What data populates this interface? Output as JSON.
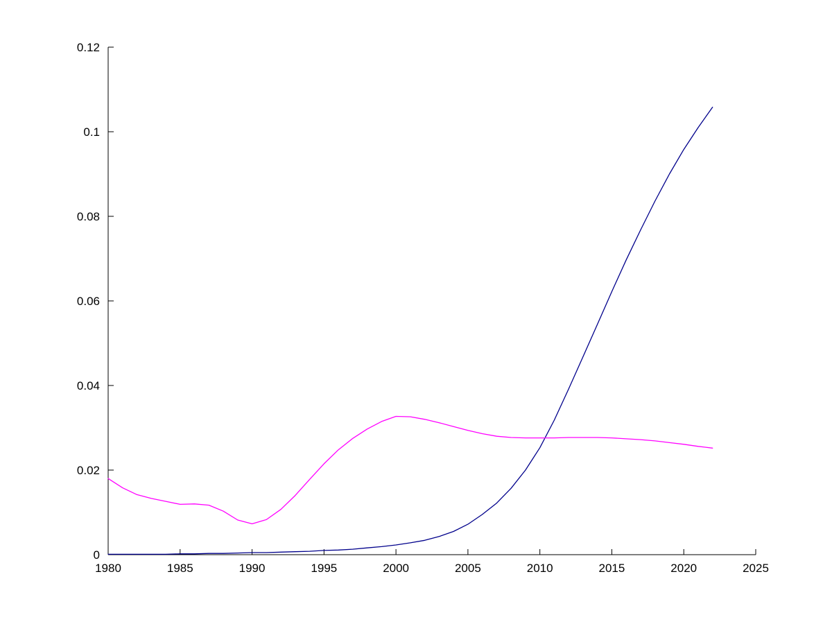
{
  "figure": {
    "background_color": "#ffffff",
    "axis_color": "#000000"
  },
  "chart_data": {
    "type": "line",
    "title": "",
    "xlabel": "",
    "ylabel": "",
    "grid": false,
    "legend": null,
    "xlim": [
      1980,
      2025
    ],
    "ylim": [
      0,
      0.12
    ],
    "xticks": [
      1980,
      1985,
      1990,
      1995,
      2000,
      2005,
      2010,
      2015,
      2020,
      2025
    ],
    "xtick_labels": [
      "1980",
      "1985",
      "1990",
      "1995",
      "2000",
      "2005",
      "2010",
      "2015",
      "2020",
      "2025"
    ],
    "yticks": [
      0,
      0.02,
      0.04,
      0.06,
      0.08,
      0.1,
      0.12
    ],
    "ytick_labels": [
      "0",
      "0.02",
      "0.04",
      "0.06",
      "0.08",
      "0.1",
      "0.12"
    ],
    "x": [
      1980,
      1981,
      1982,
      1983,
      1984,
      1985,
      1986,
      1987,
      1988,
      1989,
      1990,
      1991,
      1992,
      1993,
      1994,
      1995,
      1996,
      1997,
      1998,
      1999,
      2000,
      2001,
      2002,
      2003,
      2004,
      2005,
      2006,
      2007,
      2008,
      2009,
      2010,
      2011,
      2012,
      2013,
      2014,
      2015,
      2016,
      2017,
      2018,
      2019,
      2020,
      2021,
      2022
    ],
    "series": [
      {
        "name": "blue-rising-line",
        "color": "#00008B",
        "values": [
          0.0001,
          0.0001,
          0.0001,
          0.0001,
          0.0001,
          0.0002,
          0.0002,
          0.0003,
          0.0003,
          0.0004,
          0.0005,
          0.0005,
          0.0006,
          0.0007,
          0.0008,
          0.001,
          0.0011,
          0.0013,
          0.0016,
          0.0019,
          0.0023,
          0.0028,
          0.0034,
          0.0043,
          0.0055,
          0.0072,
          0.0095,
          0.0122,
          0.0157,
          0.02,
          0.0253,
          0.0318,
          0.0392,
          0.0468,
          0.0545,
          0.0622,
          0.0697,
          0.0768,
          0.0836,
          0.09,
          0.0958,
          0.101,
          0.1058
        ]
      },
      {
        "name": "magenta-line",
        "color": "#FF00FF",
        "values": [
          0.018,
          0.0158,
          0.0142,
          0.0133,
          0.0126,
          0.0119,
          0.012,
          0.0117,
          0.0103,
          0.0082,
          0.0073,
          0.0083,
          0.0107,
          0.014,
          0.0178,
          0.0215,
          0.0248,
          0.0275,
          0.0297,
          0.0315,
          0.0327,
          0.0326,
          0.032,
          0.0312,
          0.0303,
          0.0294,
          0.0286,
          0.028,
          0.0277,
          0.0276,
          0.0276,
          0.0276,
          0.0277,
          0.0277,
          0.0277,
          0.0276,
          0.0274,
          0.0272,
          0.0269,
          0.0265,
          0.0261,
          0.0256,
          0.0252
        ]
      }
    ]
  }
}
